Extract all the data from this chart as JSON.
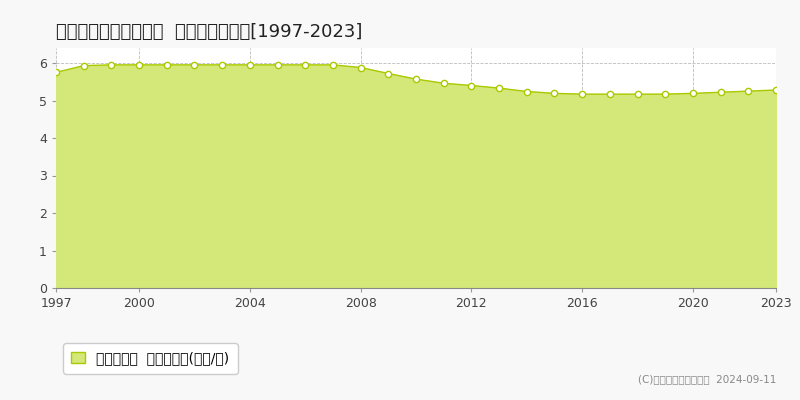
{
  "title": "東臼杵郡門川町庵川西  基準地価格推移[1997-2023]",
  "years": [
    1997,
    1998,
    1999,
    2000,
    2001,
    2002,
    2003,
    2004,
    2005,
    2006,
    2007,
    2008,
    2009,
    2010,
    2011,
    2012,
    2013,
    2014,
    2015,
    2016,
    2017,
    2018,
    2019,
    2020,
    2021,
    2022,
    2023
  ],
  "values": [
    5.75,
    5.93,
    5.95,
    5.95,
    5.95,
    5.95,
    5.95,
    5.95,
    5.95,
    5.95,
    5.95,
    5.88,
    5.72,
    5.57,
    5.46,
    5.4,
    5.33,
    5.24,
    5.19,
    5.17,
    5.17,
    5.17,
    5.17,
    5.19,
    5.22,
    5.25,
    5.28
  ],
  "line_color": "#aac900",
  "fill_color": "#d4e87a",
  "marker_facecolor": "#ffffff",
  "marker_edgecolor": "#aac900",
  "bg_color": "#f8f8f8",
  "plot_bg_color": "#ffffff",
  "grid_color": "#bbbbbb",
  "ylim": [
    0,
    6.4
  ],
  "yticks": [
    0,
    1,
    2,
    3,
    4,
    5,
    6
  ],
  "xtick_years": [
    1997,
    2000,
    2004,
    2008,
    2012,
    2016,
    2020,
    2023
  ],
  "legend_label": "基準地価格  平均嵪単価(万円/嵪)",
  "copyright_text": "(C)土地価格ドットコム  2024-09-11",
  "title_fontsize": 13,
  "axis_fontsize": 9,
  "legend_fontsize": 10
}
